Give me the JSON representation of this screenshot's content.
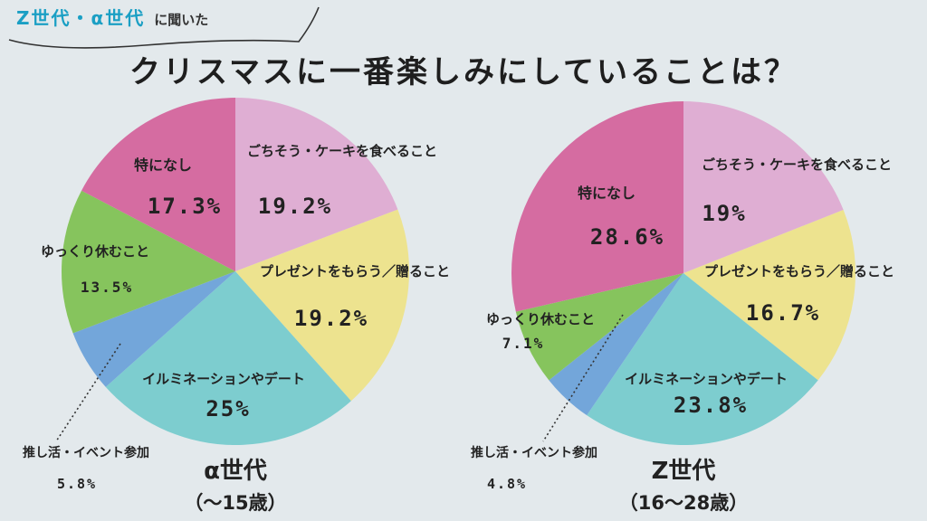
{
  "banner": {
    "highlight": "Z世代・α世代",
    "rest": "に聞いた"
  },
  "title": "クリスマスに一番楽しみにしていることは？",
  "colors": {
    "ごちそう": "#dfaed3",
    "プレゼント": "#ede38f",
    "イルミ": "#7dcdcf",
    "推し活": "#73a6da",
    "ゆっくり": "#86c45d",
    "特になし": "#d56ca1"
  },
  "chart_data": [
    {
      "type": "pie",
      "title": "α世代",
      "subtitle": "（〜15歳）",
      "slices": [
        {
          "label": "ごちそう・ケーキを食べること",
          "value": 19.2,
          "display": "19.2%",
          "color_key": "ごちそう"
        },
        {
          "label": "プレゼントをもらう／贈ること",
          "value": 19.2,
          "display": "19.2%",
          "color_key": "プレゼント"
        },
        {
          "label": "イルミネーションやデート",
          "value": 25,
          "display": "25%",
          "color_key": "イルミ"
        },
        {
          "label": "推し活・イベント参加",
          "value": 5.8,
          "display": "5.8%",
          "color_key": "推し活"
        },
        {
          "label": "ゆっくり休むこと",
          "value": 13.5,
          "display": "13.5%",
          "color_key": "ゆっくり"
        },
        {
          "label": "特になし",
          "value": 17.3,
          "display": "17.3%",
          "color_key": "特になし"
        }
      ]
    },
    {
      "type": "pie",
      "title": "Z世代",
      "subtitle": "（16〜28歳）",
      "slices": [
        {
          "label": "ごちそう・ケーキを食べること",
          "value": 19,
          "display": "19%",
          "color_key": "ごちそう"
        },
        {
          "label": "プレゼントをもらう／贈ること",
          "value": 16.7,
          "display": "16.7%",
          "color_key": "プレゼント"
        },
        {
          "label": "イルミネーションやデート",
          "value": 23.8,
          "display": "23.8%",
          "color_key": "イルミ"
        },
        {
          "label": "推し活・イベント参加",
          "value": 4.8,
          "display": "4.8%",
          "color_key": "推し活"
        },
        {
          "label": "ゆっくり休むこと",
          "value": 7.1,
          "display": "7.1%",
          "color_key": "ゆっくり"
        },
        {
          "label": "特になし",
          "value": 28.6,
          "display": "28.6%",
          "color_key": "特になし"
        }
      ]
    }
  ]
}
